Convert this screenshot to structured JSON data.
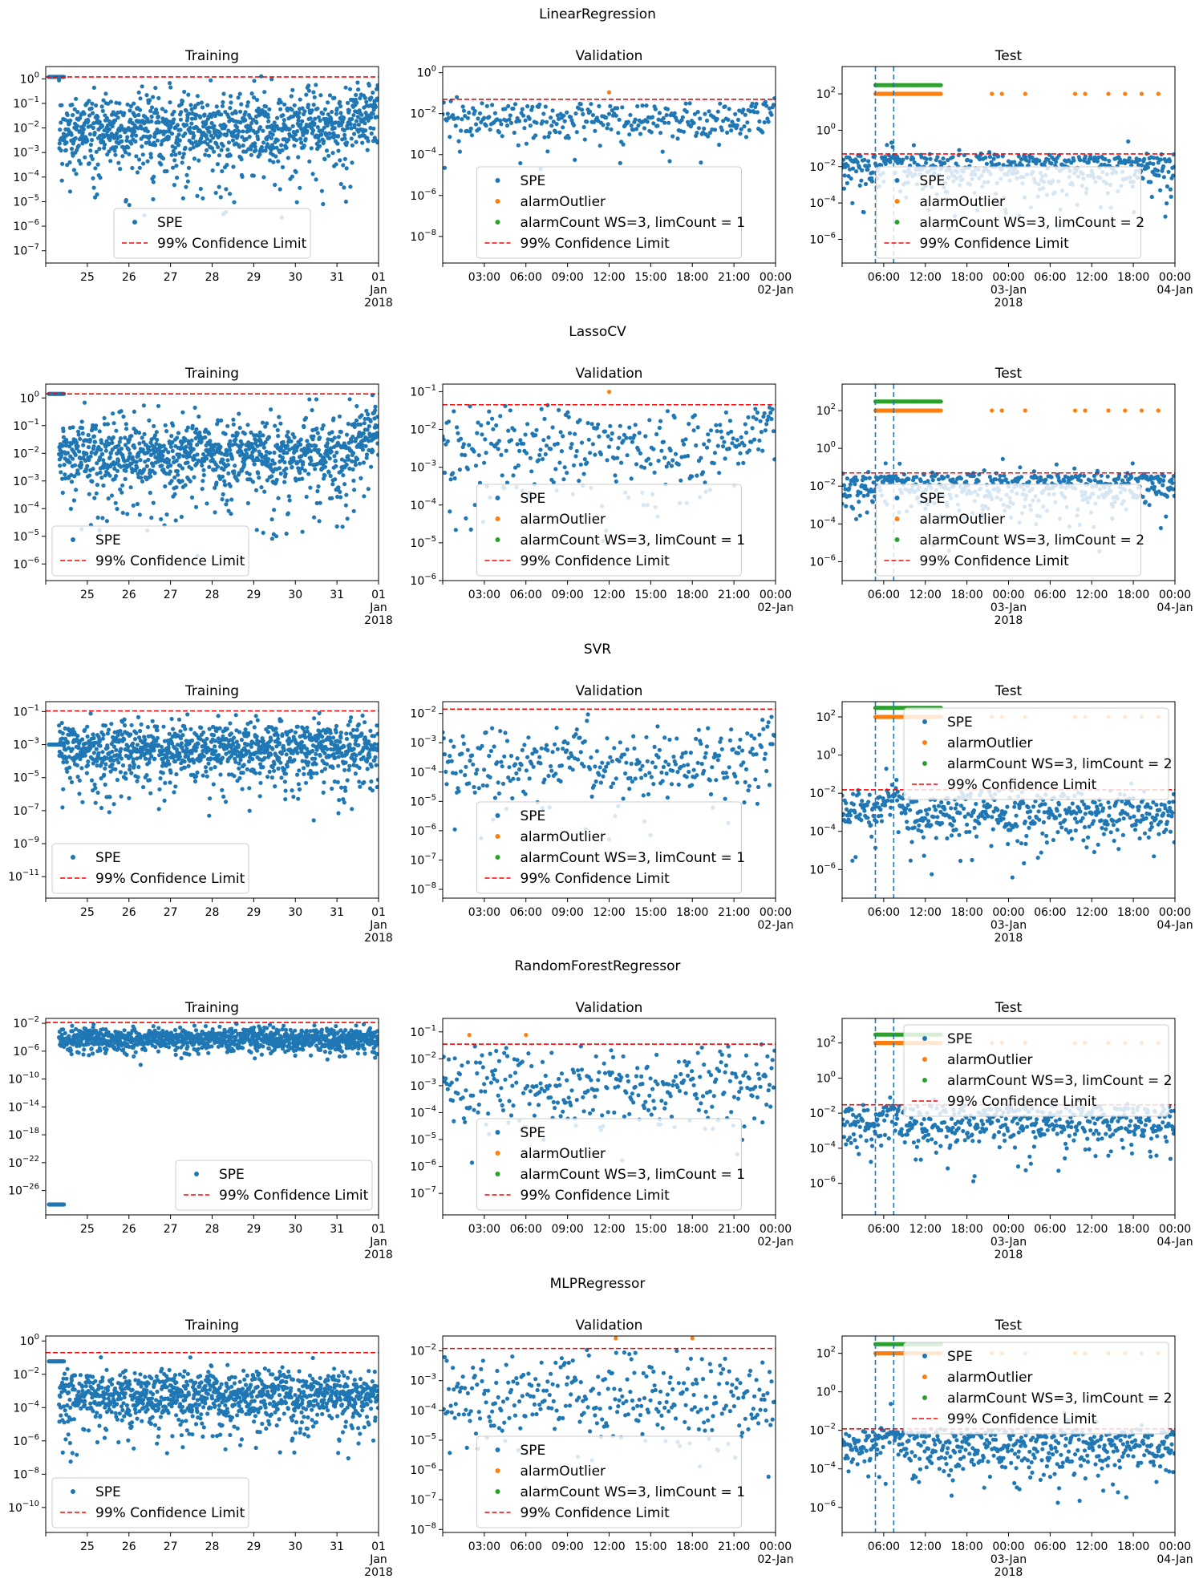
{
  "colors": {
    "spe": "#1f77b4",
    "alarm_outlier": "#ff7f0e",
    "alarm_count": "#2ca02c",
    "limit": "#ff0000",
    "window": "#1f77b4"
  },
  "panel_titles": [
    "Training",
    "Validation",
    "Test"
  ],
  "legend_labels": {
    "spe": "SPE",
    "alarm_outlier": "alarmOutlier",
    "alarm_count_val": "alarmCount WS=3, limCount = 1",
    "alarm_count_test": "alarmCount WS=3, limCount = 2",
    "limit": "99% Confidence Limit"
  },
  "x_axes": {
    "training": [
      {
        "l1": "25"
      },
      {
        "l1": "26"
      },
      {
        "l1": "27"
      },
      {
        "l1": "28"
      },
      {
        "l1": "29"
      },
      {
        "l1": "30"
      },
      {
        "l1": "31"
      },
      {
        "l1": "01",
        "l2": "Jan",
        "l3": "2018"
      }
    ],
    "validation": [
      {
        "l1": "03:00"
      },
      {
        "l1": "06:00"
      },
      {
        "l1": "09:00"
      },
      {
        "l1": "12:00"
      },
      {
        "l1": "15:00"
      },
      {
        "l1": "18:00"
      },
      {
        "l1": "21:00"
      },
      {
        "l1": "00:00",
        "l2": "02-Jan"
      }
    ],
    "test": [
      {
        "l1": "06:00"
      },
      {
        "l1": "12:00"
      },
      {
        "l1": "18:00"
      },
      {
        "l1": "00:00",
        "l2": "03-Jan",
        "l3": "2018"
      },
      {
        "l1": "06:00"
      },
      {
        "l1": "12:00"
      },
      {
        "l1": "18:00"
      },
      {
        "l1": "00:00",
        "l2": "04-Jan"
      }
    ]
  },
  "chart_data": [
    {
      "type": "scatter",
      "model": "LinearRegression",
      "yscale": "log",
      "panels": [
        {
          "title": "Training",
          "ylim_exp": [
            -7.5,
            0.5
          ],
          "yticks_exp": [
            -7,
            -6,
            -5,
            -4,
            -3,
            -2,
            -1,
            0
          ],
          "limit": 1.2,
          "center_exp": -2,
          "spread": 0.7,
          "low_tail": 2.8,
          "start_val": 1.2,
          "end_rise": 1.0,
          "legend": "bottom-center"
        },
        {
          "title": "Validation",
          "ylim_exp": [
            -9.3,
            0.3
          ],
          "yticks_exp": [
            -8,
            -6,
            -4,
            -2,
            0
          ],
          "limit": 0.05,
          "center_exp": -2.3,
          "spread": 0.5,
          "low_tail": 2.5,
          "outliers_x": [
            0.5,
            0.5
          ],
          "end_rise": 0.8,
          "legend": "lower-center"
        },
        {
          "title": "Test",
          "ylim_exp": [
            -7.3,
            3.5
          ],
          "yticks_exp": [
            -6,
            -4,
            -2,
            0,
            2
          ],
          "limit": 0.05,
          "center_exp": -2,
          "spread": 0.6,
          "low_tail": 2.5,
          "vlines": [
            0.1,
            0.155
          ],
          "alarm_band": [
            0.1,
            0.3
          ],
          "legend": "lower-center"
        }
      ]
    },
    {
      "type": "scatter",
      "model": "LassoCV",
      "yscale": "log",
      "panels": [
        {
          "title": "Training",
          "ylim_exp": [
            -6.6,
            0.5
          ],
          "yticks_exp": [
            -6,
            -5,
            -4,
            -3,
            -2,
            -1,
            0
          ],
          "limit": 1.4,
          "center_exp": -2,
          "spread": 0.6,
          "low_tail": 2.5,
          "start_val": 1.4,
          "end_rise": 1.0,
          "legend": "bottom-left"
        },
        {
          "title": "Validation",
          "ylim_exp": [
            -6,
            -0.8
          ],
          "yticks_exp": [
            -6,
            -5,
            -4,
            -3,
            -2,
            -1
          ],
          "limit": 0.045,
          "center_exp": -2.5,
          "spread": 0.6,
          "low_tail": 2.0,
          "outliers_x": [
            0.5
          ],
          "end_rise": 0.8,
          "legend": "lower-center"
        },
        {
          "title": "Test",
          "ylim_exp": [
            -7,
            3.4
          ],
          "yticks_exp": [
            -6,
            -4,
            -2,
            0,
            2
          ],
          "limit": 0.05,
          "center_exp": -2,
          "spread": 0.6,
          "low_tail": 2.5,
          "vlines": [
            0.1,
            0.155
          ],
          "alarm_band": [
            0.1,
            0.3
          ],
          "legend": "lower-center"
        }
      ]
    },
    {
      "type": "scatter",
      "model": "SVR",
      "yscale": "log",
      "panels": [
        {
          "title": "Training",
          "ylim_exp": [
            -12.3,
            -0.4
          ],
          "yticks_exp": [
            -11,
            -9,
            -7,
            -5,
            -3,
            -1
          ],
          "limit": 0.11,
          "center_exp": -3.2,
          "spread": 0.8,
          "low_tail": 3.0,
          "start_val": 0.001,
          "legend": "bottom-left"
        },
        {
          "title": "Validation",
          "ylim_exp": [
            -8.3,
            -1.6
          ],
          "yticks_exp": [
            -8,
            -7,
            -6,
            -5,
            -4,
            -3,
            -2
          ],
          "limit": 0.014,
          "center_exp": -3.7,
          "spread": 0.6,
          "low_tail": 2.0,
          "end_rise": 1.2,
          "legend": "lower-center"
        },
        {
          "title": "Test",
          "ylim_exp": [
            -7.5,
            2.8
          ],
          "yticks_exp": [
            -6,
            -4,
            -2,
            0,
            2
          ],
          "limit": 0.015,
          "center_exp": -3,
          "spread": 0.6,
          "low_tail": 2.5,
          "vlines": [
            0.1,
            0.155
          ],
          "alarm_band": [
            0.1,
            0.3
          ],
          "legend": "top-right"
        }
      ]
    },
    {
      "type": "scatter",
      "model": "RandomForestRegressor",
      "yscale": "log",
      "panels": [
        {
          "title": "Training",
          "ylim_exp": [
            -29.5,
            -1.3
          ],
          "yticks_exp": [
            -26,
            -22,
            -18,
            -14,
            -10,
            -6,
            -2
          ],
          "limit": 0.013,
          "center_exp": -4.2,
          "spread": 0.8,
          "low_tail": 2.0,
          "start_val": 1e-28,
          "legend": "bottom-right"
        },
        {
          "title": "Validation",
          "ylim_exp": [
            -7.8,
            -0.5
          ],
          "yticks_exp": [
            -7,
            -6,
            -5,
            -4,
            -3,
            -2,
            -1
          ],
          "limit": 0.035,
          "center_exp": -3.0,
          "spread": 0.7,
          "low_tail": 2.0,
          "outliers_x": [
            0.08,
            0.25
          ],
          "legend": "lower-center"
        },
        {
          "title": "Test",
          "ylim_exp": [
            -7.8,
            3.4
          ],
          "yticks_exp": [
            -6,
            -4,
            -2,
            0,
            2
          ],
          "limit": 0.03,
          "center_exp": -2.5,
          "spread": 0.7,
          "low_tail": 2.5,
          "vlines": [
            0.1,
            0.155
          ],
          "alarm_band": [
            0.1,
            0.3
          ],
          "legend": "top-right"
        }
      ]
    },
    {
      "type": "scatter",
      "model": "MLPRegressor",
      "yscale": "log",
      "panels": [
        {
          "title": "Training",
          "ylim_exp": [
            -11.5,
            0.3
          ],
          "yticks_exp": [
            -10,
            -8,
            -6,
            -4,
            -2,
            0
          ],
          "limit": 0.2,
          "center_exp": -3.2,
          "spread": 0.7,
          "low_tail": 3.0,
          "start_val": 0.06,
          "legend": "bottom-left"
        },
        {
          "title": "Validation",
          "ylim_exp": [
            -8.1,
            -1.5
          ],
          "yticks_exp": [
            -8,
            -7,
            -6,
            -5,
            -4,
            -3,
            -2
          ],
          "limit": 0.012,
          "center_exp": -3.5,
          "spread": 0.7,
          "low_tail": 2.0,
          "outliers_x": [
            0.52,
            0.75
          ],
          "legend": "lower-center"
        },
        {
          "title": "Test",
          "ylim_exp": [
            -7.3,
            2.9
          ],
          "yticks_exp": [
            -6,
            -4,
            -2,
            0,
            2
          ],
          "limit": 0.012,
          "center_exp": -2.8,
          "spread": 0.7,
          "low_tail": 2.5,
          "vlines": [
            0.1,
            0.155
          ],
          "alarm_band": [
            0.1,
            0.3
          ],
          "legend": "top-right"
        }
      ]
    }
  ]
}
